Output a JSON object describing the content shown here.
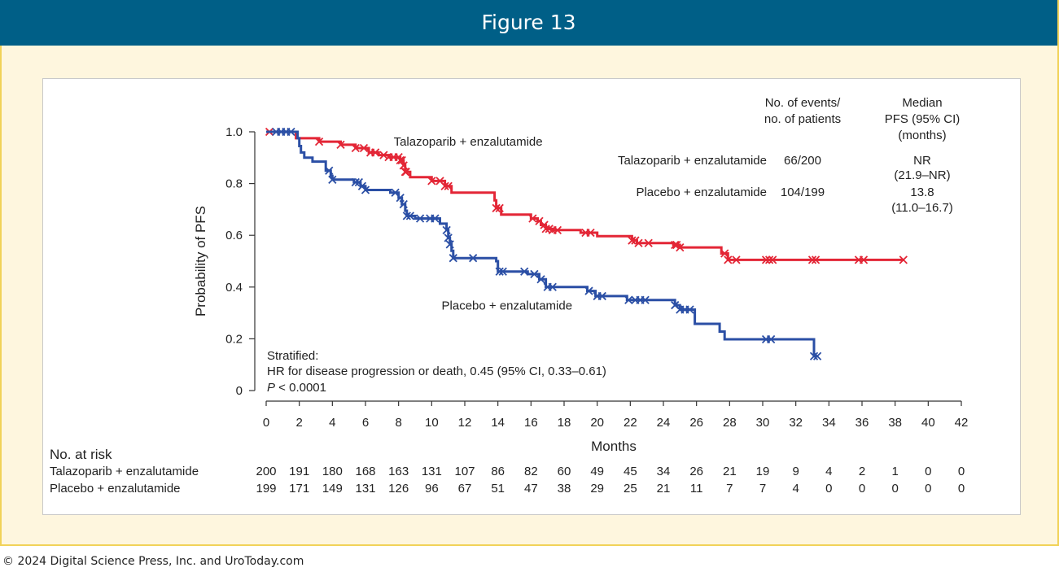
{
  "header": {
    "title": "Figure 13"
  },
  "footer": {
    "copyright": "© 2024 Digital Science Press, Inc. and UroToday.com"
  },
  "chart_data": {
    "type": "line",
    "subtype": "kaplan-meier",
    "xlabel": "Months",
    "ylabel": "Probability of PFS",
    "xlim": [
      0,
      42
    ],
    "ylim": [
      0,
      1.0
    ],
    "x_ticks": [
      0,
      2,
      4,
      6,
      8,
      10,
      12,
      14,
      16,
      18,
      20,
      22,
      24,
      26,
      28,
      30,
      32,
      34,
      36,
      38,
      40,
      42
    ],
    "y_ticks": [
      {
        "value": 0,
        "label": "0"
      },
      {
        "value": 0.2,
        "label": "0.2"
      },
      {
        "value": 0.4,
        "label": "0.4"
      },
      {
        "value": 0.6,
        "label": "0.6"
      },
      {
        "value": 0.8,
        "label": "0.8"
      },
      {
        "value": 1.0,
        "label": "1.0"
      }
    ],
    "grid": false,
    "series": [
      {
        "name": "Talazoparib + enzalutamide",
        "color": "#e32636",
        "steps": [
          [
            0,
            1.0
          ],
          [
            1.8,
            1.0
          ],
          [
            1.8,
            0.975
          ],
          [
            3.2,
            0.975
          ],
          [
            3.2,
            0.962
          ],
          [
            4.5,
            0.962
          ],
          [
            4.5,
            0.95
          ],
          [
            5.4,
            0.95
          ],
          [
            5.4,
            0.937
          ],
          [
            6.2,
            0.937
          ],
          [
            6.2,
            0.92
          ],
          [
            6.8,
            0.92
          ],
          [
            6.8,
            0.91
          ],
          [
            7.4,
            0.91
          ],
          [
            7.4,
            0.902
          ],
          [
            8.1,
            0.902
          ],
          [
            8.1,
            0.89
          ],
          [
            8.3,
            0.89
          ],
          [
            8.3,
            0.87
          ],
          [
            8.4,
            0.87
          ],
          [
            8.4,
            0.845
          ],
          [
            8.7,
            0.845
          ],
          [
            8.7,
            0.825
          ],
          [
            10.0,
            0.825
          ],
          [
            10.0,
            0.81
          ],
          [
            10.8,
            0.81
          ],
          [
            10.8,
            0.79
          ],
          [
            11.2,
            0.79
          ],
          [
            11.2,
            0.765
          ],
          [
            13.8,
            0.765
          ],
          [
            13.8,
            0.735
          ],
          [
            13.9,
            0.735
          ],
          [
            13.9,
            0.705
          ],
          [
            14.2,
            0.705
          ],
          [
            14.2,
            0.68
          ],
          [
            16.0,
            0.68
          ],
          [
            16.0,
            0.665
          ],
          [
            16.4,
            0.665
          ],
          [
            16.4,
            0.655
          ],
          [
            16.6,
            0.655
          ],
          [
            16.6,
            0.64
          ],
          [
            16.9,
            0.64
          ],
          [
            16.9,
            0.625
          ],
          [
            17.3,
            0.625
          ],
          [
            17.3,
            0.62
          ],
          [
            19.0,
            0.62
          ],
          [
            19.0,
            0.61
          ],
          [
            20.0,
            0.61
          ],
          [
            20.0,
            0.597
          ],
          [
            22.1,
            0.597
          ],
          [
            22.1,
            0.58
          ],
          [
            22.4,
            0.58
          ],
          [
            22.4,
            0.57
          ],
          [
            24.6,
            0.57
          ],
          [
            24.6,
            0.563
          ],
          [
            25.0,
            0.563
          ],
          [
            25.0,
            0.553
          ],
          [
            27.5,
            0.553
          ],
          [
            27.5,
            0.53
          ],
          [
            27.9,
            0.53
          ],
          [
            27.9,
            0.505
          ],
          [
            38.5,
            0.505
          ]
        ],
        "censor_x": [
          0.2,
          3.2,
          4.5,
          5.4,
          5.9,
          6.3,
          6.6,
          7.1,
          7.4,
          7.7,
          8.0,
          8.1,
          8.2,
          8.3,
          8.4,
          8.45,
          10.0,
          10.5,
          10.8,
          11.0,
          13.9,
          14.1,
          16.1,
          16.5,
          16.8,
          16.9,
          17.1,
          17.3,
          17.6,
          19.3,
          19.6,
          22.1,
          22.3,
          22.5,
          23.1,
          24.7,
          24.8,
          25.0,
          27.7,
          27.9,
          28.4,
          30.2,
          30.4,
          30.6,
          33.0,
          33.2,
          35.8,
          36.1,
          38.5
        ]
      },
      {
        "name": "Placebo + enzalutamide",
        "color": "#2b4fa5",
        "steps": [
          [
            0,
            1.0
          ],
          [
            1.9,
            1.0
          ],
          [
            1.9,
            0.975
          ],
          [
            2.0,
            0.975
          ],
          [
            2.0,
            0.945
          ],
          [
            2.1,
            0.945
          ],
          [
            2.1,
            0.92
          ],
          [
            2.3,
            0.92
          ],
          [
            2.3,
            0.9
          ],
          [
            2.8,
            0.9
          ],
          [
            2.8,
            0.885
          ],
          [
            3.6,
            0.885
          ],
          [
            3.6,
            0.85
          ],
          [
            3.9,
            0.85
          ],
          [
            3.9,
            0.83
          ],
          [
            4.0,
            0.83
          ],
          [
            4.0,
            0.815
          ],
          [
            5.3,
            0.815
          ],
          [
            5.3,
            0.805
          ],
          [
            5.7,
            0.805
          ],
          [
            5.7,
            0.79
          ],
          [
            6.0,
            0.79
          ],
          [
            6.0,
            0.775
          ],
          [
            7.5,
            0.775
          ],
          [
            7.5,
            0.765
          ],
          [
            8.0,
            0.765
          ],
          [
            8.0,
            0.745
          ],
          [
            8.2,
            0.745
          ],
          [
            8.2,
            0.72
          ],
          [
            8.4,
            0.72
          ],
          [
            8.4,
            0.695
          ],
          [
            8.5,
            0.695
          ],
          [
            8.5,
            0.675
          ],
          [
            9.0,
            0.675
          ],
          [
            9.0,
            0.665
          ],
          [
            10.5,
            0.665
          ],
          [
            10.5,
            0.645
          ],
          [
            10.9,
            0.645
          ],
          [
            10.9,
            0.62
          ],
          [
            11.0,
            0.62
          ],
          [
            11.0,
            0.59
          ],
          [
            11.1,
            0.59
          ],
          [
            11.1,
            0.565
          ],
          [
            11.2,
            0.565
          ],
          [
            11.2,
            0.54
          ],
          [
            11.3,
            0.54
          ],
          [
            11.3,
            0.512
          ],
          [
            13.9,
            0.512
          ],
          [
            13.9,
            0.5
          ],
          [
            14.0,
            0.5
          ],
          [
            14.0,
            0.46
          ],
          [
            15.8,
            0.46
          ],
          [
            15.8,
            0.45
          ],
          [
            16.5,
            0.45
          ],
          [
            16.5,
            0.43
          ],
          [
            16.9,
            0.43
          ],
          [
            16.9,
            0.4
          ],
          [
            19.4,
            0.4
          ],
          [
            19.4,
            0.385
          ],
          [
            19.9,
            0.385
          ],
          [
            19.9,
            0.365
          ],
          [
            21.8,
            0.365
          ],
          [
            21.8,
            0.35
          ],
          [
            24.7,
            0.35
          ],
          [
            24.7,
            0.33
          ],
          [
            25.0,
            0.33
          ],
          [
            25.0,
            0.313
          ],
          [
            25.9,
            0.313
          ],
          [
            25.9,
            0.258
          ],
          [
            27.4,
            0.258
          ],
          [
            27.4,
            0.228
          ],
          [
            27.7,
            0.228
          ],
          [
            27.7,
            0.198
          ],
          [
            33.1,
            0.198
          ],
          [
            33.1,
            0.133
          ],
          [
            33.3,
            0.133
          ]
        ],
        "censor_x": [
          0.6,
          0.9,
          1.2,
          1.5,
          3.8,
          4.0,
          5.4,
          5.6,
          5.8,
          6.0,
          7.8,
          8.1,
          8.3,
          8.5,
          8.7,
          9.3,
          9.9,
          10.2,
          10.9,
          11.0,
          11.1,
          11.3,
          12.5,
          14.1,
          14.3,
          15.6,
          16.2,
          16.6,
          17.0,
          17.3,
          19.5,
          20.0,
          20.3,
          21.9,
          22.3,
          22.6,
          22.9,
          24.7,
          25.0,
          25.3,
          25.6,
          30.2,
          30.5,
          33.1,
          33.3
        ]
      }
    ],
    "series_labels": [
      {
        "text": "Talazoparib + enzalutamide",
        "x": 7.7,
        "y": 0.963
      },
      {
        "text": "Placebo + enzalutamide",
        "x": 10.6,
        "y": 0.328
      }
    ],
    "summary_table": {
      "col_events_line1": "No. of events/",
      "col_events_line2": "no. of patients",
      "col_median_line1": "Median",
      "col_median_line2": "PFS (95% CI)",
      "col_median_line3": "(months)",
      "rows": [
        {
          "label": "Talazoparib + enzalutamide",
          "events": "66/200",
          "median": "NR",
          "ci": "(21.9–NR)"
        },
        {
          "label": "Placebo + enzalutamide",
          "events": "104/199",
          "median": "13.8",
          "ci": "(11.0–16.7)"
        }
      ]
    },
    "annotation": {
      "line1": "Stratified:",
      "line2": "HR for disease progression or death, 0.45 (95% CI, 0.33–0.61)",
      "p_label": "P",
      "p_value": " < 0.0001"
    },
    "at_risk": {
      "title": "No. at risk",
      "rows": [
        {
          "label": "Talazoparib + enzalutamide",
          "values": [
            200,
            191,
            180,
            168,
            163,
            131,
            107,
            86,
            82,
            60,
            49,
            45,
            34,
            26,
            21,
            19,
            9,
            4,
            2,
            1,
            0,
            0
          ]
        },
        {
          "label": "Placebo + enzalutamide",
          "values": [
            199,
            171,
            149,
            131,
            126,
            96,
            67,
            51,
            47,
            38,
            29,
            25,
            21,
            11,
            7,
            7,
            4,
            0,
            0,
            0,
            0,
            0
          ]
        }
      ]
    }
  }
}
